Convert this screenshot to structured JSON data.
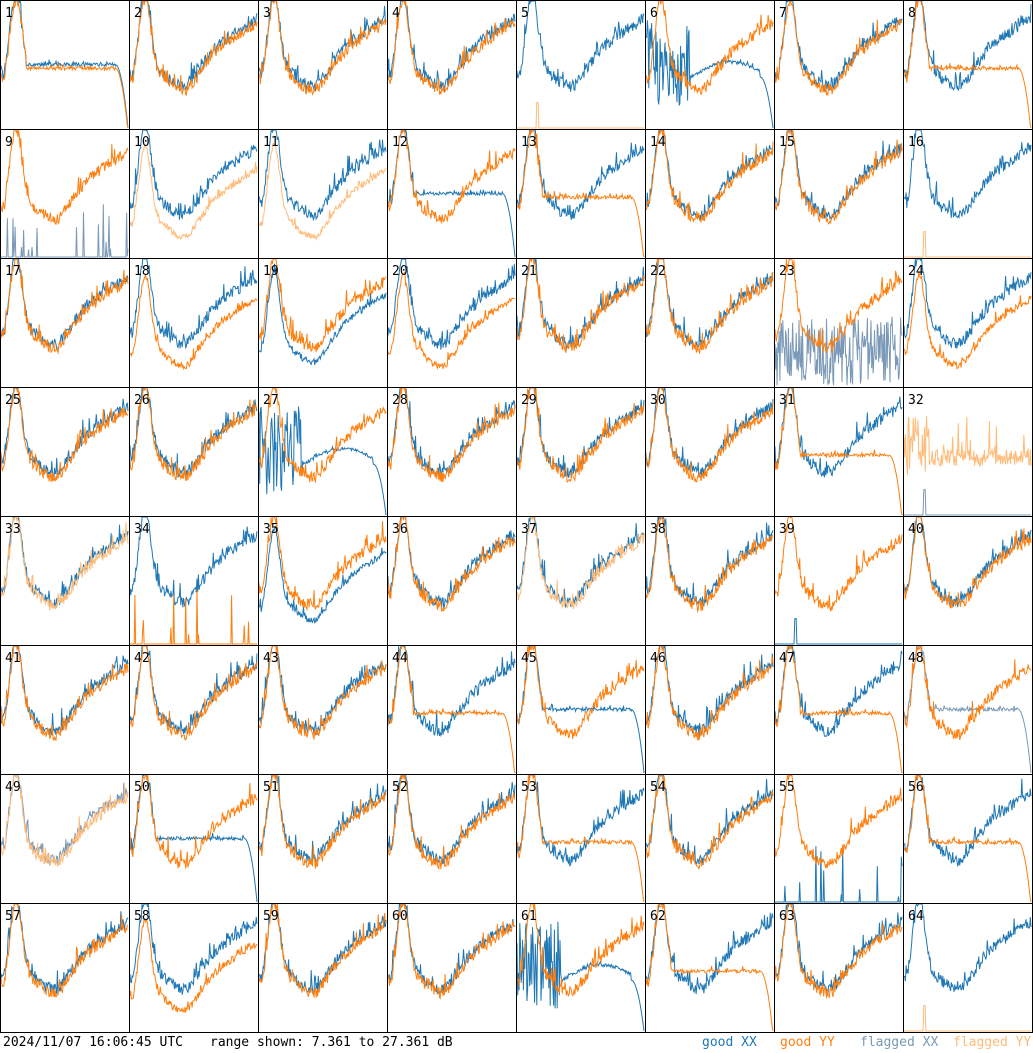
{
  "footer": {
    "timestamp": "2024/11/07 16:06:45 UTC",
    "range_text": "range shown: 7.361 to 27.361 dB"
  },
  "legend": {
    "good_xx": "good XX",
    "good_yy": "good YY",
    "flagged_xx": "flagged XX",
    "flagged_yy": "flagged YY"
  },
  "colors": {
    "good_xx": "#1f77b4",
    "good_yy": "#ff7f0e",
    "flagged_xx": "#7a99b7",
    "flagged_yy": "#ffbb78",
    "frame": "#000000"
  },
  "chart_data": {
    "type": "line",
    "layout": "8x8 small multiples, one per antenna",
    "ylim": [
      7.361,
      27.361
    ],
    "yunit": "dB",
    "xlim": [
      0,
      1
    ],
    "grid": false,
    "legend_placement": "bottom-right",
    "panels": [
      {
        "id": "1",
        "xx": {
          "status": "good",
          "shape": "falloff"
        },
        "yy": {
          "status": "good",
          "shape": "falloff"
        }
      },
      {
        "id": "2",
        "xx": {
          "status": "good",
          "shape": "normal"
        },
        "yy": {
          "status": "good",
          "shape": "normal"
        }
      },
      {
        "id": "3",
        "xx": {
          "status": "good",
          "shape": "normal"
        },
        "yy": {
          "status": "good",
          "shape": "normal"
        }
      },
      {
        "id": "4",
        "xx": {
          "status": "good",
          "shape": "normal"
        },
        "yy": {
          "status": "good",
          "shape": "normal"
        }
      },
      {
        "id": "5",
        "xx": {
          "status": "good",
          "shape": "normal"
        },
        "yy": {
          "status": "flagged",
          "shape": "dead"
        }
      },
      {
        "id": "6",
        "xx": {
          "status": "good",
          "shape": "damaged"
        },
        "yy": {
          "status": "good",
          "shape": "normal"
        }
      },
      {
        "id": "7",
        "xx": {
          "status": "good",
          "shape": "normal"
        },
        "yy": {
          "status": "good",
          "shape": "normal"
        }
      },
      {
        "id": "8",
        "xx": {
          "status": "good",
          "shape": "normal"
        },
        "yy": {
          "status": "good",
          "shape": "falloff"
        }
      },
      {
        "id": "9",
        "xx": {
          "status": "flagged",
          "shape": "spiky_dead"
        },
        "yy": {
          "status": "good",
          "shape": "normal"
        }
      },
      {
        "id": "10",
        "xx": {
          "status": "good",
          "shape": "normal"
        },
        "yy": {
          "status": "flagged",
          "shape": "lower"
        }
      },
      {
        "id": "11",
        "xx": {
          "status": "good",
          "shape": "normal"
        },
        "yy": {
          "status": "flagged",
          "shape": "lower"
        }
      },
      {
        "id": "12",
        "xx": {
          "status": "good",
          "shape": "falloff"
        },
        "yy": {
          "status": "good",
          "shape": "normal"
        }
      },
      {
        "id": "13",
        "xx": {
          "status": "good",
          "shape": "normal"
        },
        "yy": {
          "status": "good",
          "shape": "falloff"
        }
      },
      {
        "id": "14",
        "xx": {
          "status": "good",
          "shape": "normal"
        },
        "yy": {
          "status": "good",
          "shape": "normal"
        }
      },
      {
        "id": "15",
        "xx": {
          "status": "good",
          "shape": "normal"
        },
        "yy": {
          "status": "good",
          "shape": "normal"
        }
      },
      {
        "id": "16",
        "xx": {
          "status": "good",
          "shape": "normal"
        },
        "yy": {
          "status": "flagged",
          "shape": "dead"
        }
      },
      {
        "id": "17",
        "xx": {
          "status": "good",
          "shape": "normal"
        },
        "yy": {
          "status": "good",
          "shape": "normal"
        }
      },
      {
        "id": "18",
        "xx": {
          "status": "good",
          "shape": "normal"
        },
        "yy": {
          "status": "good",
          "shape": "lower"
        }
      },
      {
        "id": "19",
        "xx": {
          "status": "good",
          "shape": "lower"
        },
        "yy": {
          "status": "good",
          "shape": "normal"
        }
      },
      {
        "id": "20",
        "xx": {
          "status": "good",
          "shape": "normal"
        },
        "yy": {
          "status": "good",
          "shape": "lower"
        }
      },
      {
        "id": "21",
        "xx": {
          "status": "good",
          "shape": "normal"
        },
        "yy": {
          "status": "good",
          "shape": "normal"
        }
      },
      {
        "id": "22",
        "xx": {
          "status": "good",
          "shape": "normal"
        },
        "yy": {
          "status": "good",
          "shape": "normal"
        }
      },
      {
        "id": "23",
        "xx": {
          "status": "flagged",
          "shape": "noise"
        },
        "yy": {
          "status": "good",
          "shape": "normal"
        }
      },
      {
        "id": "24",
        "xx": {
          "status": "good",
          "shape": "normal"
        },
        "yy": {
          "status": "good",
          "shape": "lower"
        }
      },
      {
        "id": "25",
        "xx": {
          "status": "good",
          "shape": "normal"
        },
        "yy": {
          "status": "good",
          "shape": "normal"
        }
      },
      {
        "id": "26",
        "xx": {
          "status": "good",
          "shape": "normal"
        },
        "yy": {
          "status": "good",
          "shape": "normal"
        }
      },
      {
        "id": "27",
        "xx": {
          "status": "good",
          "shape": "damaged"
        },
        "yy": {
          "status": "good",
          "shape": "normal"
        }
      },
      {
        "id": "28",
        "xx": {
          "status": "good",
          "shape": "normal"
        },
        "yy": {
          "status": "good",
          "shape": "normal"
        }
      },
      {
        "id": "29",
        "xx": {
          "status": "good",
          "shape": "normal"
        },
        "yy": {
          "status": "good",
          "shape": "normal"
        }
      },
      {
        "id": "30",
        "xx": {
          "status": "good",
          "shape": "normal"
        },
        "yy": {
          "status": "good",
          "shape": "normal"
        }
      },
      {
        "id": "31",
        "xx": {
          "status": "good",
          "shape": "normal"
        },
        "yy": {
          "status": "good",
          "shape": "falloff"
        }
      },
      {
        "id": "32",
        "xx": {
          "status": "flagged",
          "shape": "dead"
        },
        "yy": {
          "status": "flagged",
          "shape": "odd"
        }
      },
      {
        "id": "33",
        "xx": {
          "status": "good",
          "shape": "normal"
        },
        "yy": {
          "status": "flagged",
          "shape": "normal"
        }
      },
      {
        "id": "34",
        "xx": {
          "status": "good",
          "shape": "normal"
        },
        "yy": {
          "status": "good",
          "shape": "spiky_dead"
        }
      },
      {
        "id": "35",
        "xx": {
          "status": "good",
          "shape": "lower"
        },
        "yy": {
          "status": "good",
          "shape": "normal"
        }
      },
      {
        "id": "36",
        "xx": {
          "status": "good",
          "shape": "normal"
        },
        "yy": {
          "status": "good",
          "shape": "normal"
        }
      },
      {
        "id": "37",
        "xx": {
          "status": "good",
          "shape": "normal"
        },
        "yy": {
          "status": "flagged",
          "shape": "normal"
        }
      },
      {
        "id": "38",
        "xx": {
          "status": "good",
          "shape": "normal"
        },
        "yy": {
          "status": "good",
          "shape": "normal"
        }
      },
      {
        "id": "39",
        "xx": {
          "status": "good",
          "shape": "dead"
        },
        "yy": {
          "status": "good",
          "shape": "normal"
        }
      },
      {
        "id": "40",
        "xx": {
          "status": "good",
          "shape": "normal"
        },
        "yy": {
          "status": "good",
          "shape": "normal"
        }
      },
      {
        "id": "41",
        "xx": {
          "status": "good",
          "shape": "normal"
        },
        "yy": {
          "status": "good",
          "shape": "normal"
        }
      },
      {
        "id": "42",
        "xx": {
          "status": "good",
          "shape": "normal"
        },
        "yy": {
          "status": "good",
          "shape": "normal"
        }
      },
      {
        "id": "43",
        "xx": {
          "status": "good",
          "shape": "normal"
        },
        "yy": {
          "status": "good",
          "shape": "normal"
        }
      },
      {
        "id": "44",
        "xx": {
          "status": "good",
          "shape": "normal"
        },
        "yy": {
          "status": "good",
          "shape": "falloff"
        }
      },
      {
        "id": "45",
        "xx": {
          "status": "good",
          "shape": "falloff"
        },
        "yy": {
          "status": "good",
          "shape": "normal"
        }
      },
      {
        "id": "46",
        "xx": {
          "status": "good",
          "shape": "normal"
        },
        "yy": {
          "status": "good",
          "shape": "normal"
        }
      },
      {
        "id": "47",
        "xx": {
          "status": "good",
          "shape": "normal"
        },
        "yy": {
          "status": "good",
          "shape": "falloff"
        }
      },
      {
        "id": "48",
        "xx": {
          "status": "flagged",
          "shape": "falloff"
        },
        "yy": {
          "status": "good",
          "shape": "normal"
        }
      },
      {
        "id": "49",
        "xx": {
          "status": "flagged",
          "shape": "normal"
        },
        "yy": {
          "status": "flagged",
          "shape": "normal"
        }
      },
      {
        "id": "50",
        "xx": {
          "status": "good",
          "shape": "falloff"
        },
        "yy": {
          "status": "good",
          "shape": "normal"
        }
      },
      {
        "id": "51",
        "xx": {
          "status": "good",
          "shape": "normal"
        },
        "yy": {
          "status": "good",
          "shape": "normal"
        }
      },
      {
        "id": "52",
        "xx": {
          "status": "good",
          "shape": "normal"
        },
        "yy": {
          "status": "good",
          "shape": "normal"
        }
      },
      {
        "id": "53",
        "xx": {
          "status": "good",
          "shape": "normal"
        },
        "yy": {
          "status": "good",
          "shape": "falloff"
        }
      },
      {
        "id": "54",
        "xx": {
          "status": "good",
          "shape": "normal"
        },
        "yy": {
          "status": "good",
          "shape": "normal"
        }
      },
      {
        "id": "55",
        "xx": {
          "status": "good",
          "shape": "spiky_dead"
        },
        "yy": {
          "status": "good",
          "shape": "normal"
        }
      },
      {
        "id": "56",
        "xx": {
          "status": "good",
          "shape": "normal"
        },
        "yy": {
          "status": "good",
          "shape": "falloff"
        }
      },
      {
        "id": "57",
        "xx": {
          "status": "good",
          "shape": "normal"
        },
        "yy": {
          "status": "good",
          "shape": "normal"
        }
      },
      {
        "id": "58",
        "xx": {
          "status": "good",
          "shape": "normal"
        },
        "yy": {
          "status": "good",
          "shape": "lower"
        }
      },
      {
        "id": "59",
        "xx": {
          "status": "good",
          "shape": "normal"
        },
        "yy": {
          "status": "good",
          "shape": "normal"
        }
      },
      {
        "id": "60",
        "xx": {
          "status": "good",
          "shape": "normal"
        },
        "yy": {
          "status": "good",
          "shape": "normal"
        }
      },
      {
        "id": "61",
        "xx": {
          "status": "good",
          "shape": "damaged"
        },
        "yy": {
          "status": "good",
          "shape": "normal"
        }
      },
      {
        "id": "62",
        "xx": {
          "status": "good",
          "shape": "normal"
        },
        "yy": {
          "status": "good",
          "shape": "falloff"
        }
      },
      {
        "id": "63",
        "xx": {
          "status": "good",
          "shape": "normal"
        },
        "yy": {
          "status": "good",
          "shape": "normal"
        }
      },
      {
        "id": "64",
        "xx": {
          "status": "good",
          "shape": "normal"
        },
        "yy": {
          "status": "flagged",
          "shape": "dead"
        }
      }
    ]
  }
}
